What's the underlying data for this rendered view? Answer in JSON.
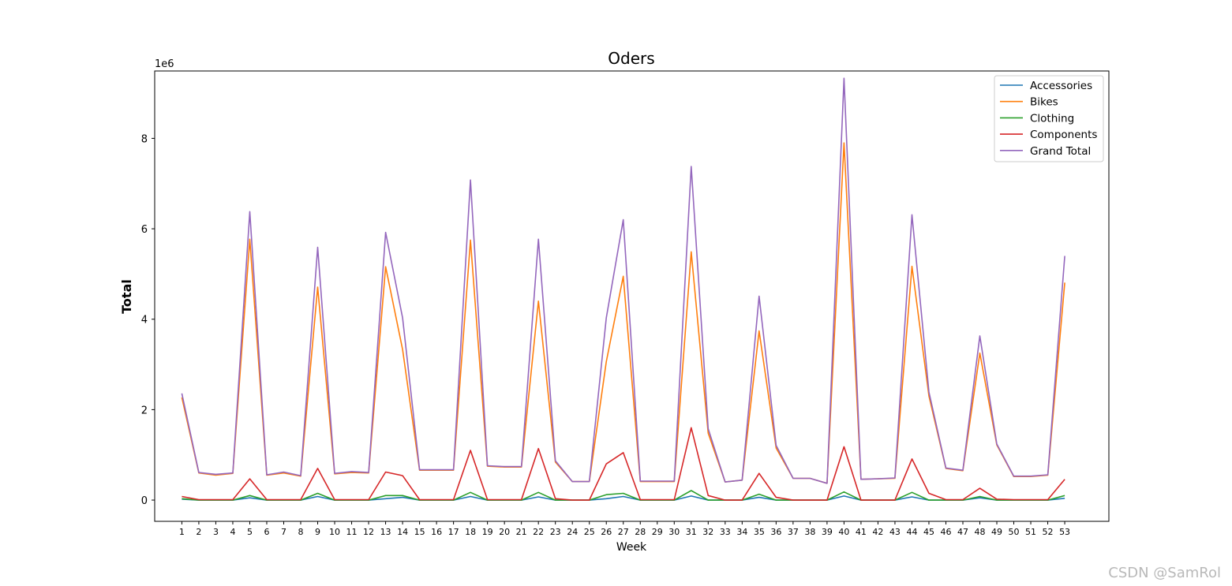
{
  "watermark": "CSDN @SamRol",
  "chart_data": {
    "type": "line",
    "title": "Oders",
    "xlabel": "Week",
    "ylabel": "Total",
    "y_offset_label": "1e6",
    "x": [
      1,
      2,
      3,
      4,
      5,
      6,
      7,
      8,
      9,
      10,
      11,
      12,
      13,
      14,
      15,
      16,
      17,
      18,
      19,
      20,
      21,
      22,
      23,
      24,
      25,
      26,
      27,
      28,
      29,
      30,
      31,
      32,
      33,
      34,
      35,
      36,
      37,
      38,
      39,
      40,
      41,
      42,
      43,
      44,
      45,
      46,
      47,
      48,
      49,
      50,
      51,
      52,
      53
    ],
    "xlim": [
      -0.6,
      55.6
    ],
    "ylim": [
      -0.47,
      9.49
    ],
    "yticks": [
      0,
      2,
      4,
      6,
      8
    ],
    "grid": false,
    "legend_position": "top-right",
    "series": [
      {
        "name": "Accessories",
        "color": "#1f77b4",
        "values": [
          0.02,
          0.0,
          0.0,
          0.0,
          0.05,
          0.0,
          0.0,
          0.0,
          0.08,
          0.0,
          0.0,
          0.0,
          0.03,
          0.06,
          0.0,
          0.0,
          0.0,
          0.08,
          0.0,
          0.0,
          0.0,
          0.07,
          0.0,
          0.0,
          0.0,
          0.03,
          0.08,
          0.0,
          0.0,
          0.0,
          0.09,
          0.0,
          0.0,
          0.0,
          0.06,
          0.0,
          0.0,
          0.0,
          0.0,
          0.09,
          0.0,
          0.0,
          0.0,
          0.07,
          0.0,
          0.0,
          0.0,
          0.05,
          0.0,
          0.0,
          0.0,
          0.0,
          0.04
        ]
      },
      {
        "name": "Bikes",
        "color": "#ff7f0e",
        "values": [
          2.27,
          0.6,
          0.55,
          0.59,
          5.77,
          0.55,
          0.6,
          0.53,
          4.71,
          0.58,
          0.61,
          0.6,
          5.16,
          3.33,
          0.66,
          0.66,
          0.66,
          5.75,
          0.75,
          0.73,
          0.73,
          4.4,
          0.84,
          0.41,
          0.41,
          3.06,
          4.95,
          0.41,
          0.41,
          0.41,
          5.49,
          1.48,
          0.4,
          0.44,
          3.74,
          1.15,
          0.48,
          0.48,
          0.37,
          7.9,
          0.46,
          0.47,
          0.48,
          5.17,
          2.3,
          0.7,
          0.65,
          3.25,
          1.22,
          0.52,
          0.52,
          0.55,
          4.81
        ]
      },
      {
        "name": "Clothing",
        "color": "#2ca02c",
        "values": [
          0.03,
          0.0,
          0.0,
          0.0,
          0.1,
          0.0,
          0.0,
          0.0,
          0.15,
          0.0,
          0.0,
          0.0,
          0.1,
          0.1,
          0.0,
          0.0,
          0.0,
          0.17,
          0.0,
          0.0,
          0.0,
          0.17,
          0.0,
          0.0,
          0.0,
          0.12,
          0.15,
          0.0,
          0.0,
          0.0,
          0.21,
          0.0,
          0.0,
          0.0,
          0.13,
          0.0,
          0.0,
          0.0,
          0.0,
          0.18,
          0.0,
          0.0,
          0.0,
          0.17,
          0.0,
          0.0,
          0.0,
          0.08,
          0.0,
          0.0,
          0.0,
          0.0,
          0.1
        ]
      },
      {
        "name": "Components",
        "color": "#d62728",
        "values": [
          0.08,
          0.01,
          0.01,
          0.01,
          0.47,
          0.01,
          0.01,
          0.01,
          0.7,
          0.01,
          0.01,
          0.01,
          0.62,
          0.54,
          0.01,
          0.01,
          0.01,
          1.1,
          0.01,
          0.01,
          0.01,
          1.14,
          0.03,
          0.0,
          0.0,
          0.8,
          1.05,
          0.01,
          0.01,
          0.01,
          1.6,
          0.1,
          0.0,
          0.0,
          0.59,
          0.06,
          0.0,
          0.0,
          0.0,
          1.18,
          0.0,
          0.0,
          0.0,
          0.91,
          0.15,
          0.01,
          0.01,
          0.26,
          0.02,
          0.01,
          0.01,
          0.01,
          0.46
        ]
      },
      {
        "name": "Grand Total",
        "color": "#9467bd",
        "values": [
          2.36,
          0.61,
          0.57,
          0.6,
          6.38,
          0.56,
          0.62,
          0.54,
          5.59,
          0.59,
          0.63,
          0.61,
          5.92,
          4.03,
          0.67,
          0.67,
          0.67,
          7.08,
          0.76,
          0.74,
          0.74,
          5.77,
          0.87,
          0.41,
          0.41,
          4.03,
          6.2,
          0.42,
          0.42,
          0.42,
          7.38,
          1.58,
          0.4,
          0.44,
          4.51,
          1.21,
          0.48,
          0.48,
          0.37,
          9.33,
          0.46,
          0.47,
          0.49,
          6.31,
          2.39,
          0.71,
          0.66,
          3.63,
          1.24,
          0.53,
          0.53,
          0.56,
          5.4
        ]
      }
    ]
  }
}
